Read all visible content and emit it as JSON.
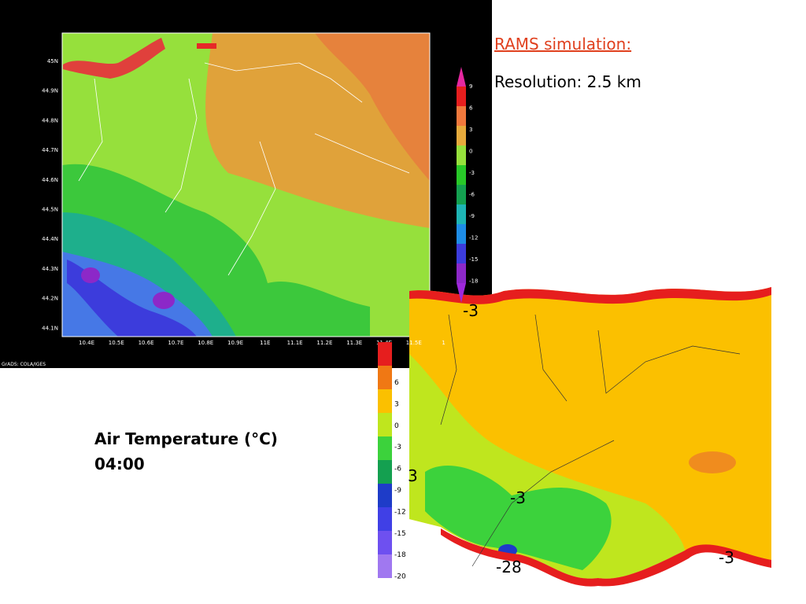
{
  "slide": {
    "title": "RAMS simulation:",
    "subtitle": "Resolution: 2.5 km",
    "caption": [
      "Air Temperature (°C)",
      "04:00"
    ]
  },
  "map1": {
    "lat_labels": [
      "45N",
      "44.9N",
      "44.8N",
      "44.7N",
      "44.6N",
      "44.5N",
      "44.4N",
      "44.3N",
      "44.2N",
      "44.1N"
    ],
    "lon_labels": [
      "10.4E",
      "10.5E",
      "10.6E",
      "10.7E",
      "10.8E",
      "10.9E",
      "11E",
      "11.1E",
      "11.2E",
      "11.3E",
      "11.4E",
      "11.5E",
      "1"
    ],
    "colorbar_labels": [
      "9",
      "6",
      "3",
      "0",
      "-3",
      "-6",
      "-9",
      "-12",
      "-15",
      "-18"
    ],
    "credit": "GrADS: COLA/IGES"
  },
  "map2": {
    "colorbar_labels": [
      "6",
      "3",
      "0",
      "-3",
      "-6",
      "-9",
      "-12",
      "-15",
      "-18",
      "-20"
    ],
    "contour_labels": [
      "-3",
      "-3",
      "3",
      "-28",
      "-3"
    ]
  }
}
